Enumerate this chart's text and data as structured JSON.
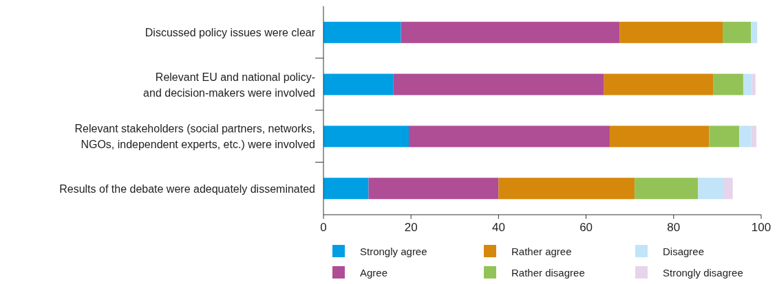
{
  "chart_data": {
    "type": "bar",
    "orientation": "horizontal",
    "stacked": true,
    "categories": [
      "Discussed policy issues were clear",
      "Relevant EU and national policy-\nand decision-makers were involved",
      "Relevant stakeholders (social partners, networks,\nNGOs, independent experts, etc.) were involved",
      "Results of the debate were adequately disseminated"
    ],
    "series": [
      {
        "name": "Strongly agree",
        "color": "#009fe3",
        "values": [
          17.7,
          16.0,
          19.5,
          10.3
        ]
      },
      {
        "name": "Agree",
        "color": "#af4d95",
        "values": [
          50.0,
          48.1,
          45.9,
          29.7
        ]
      },
      {
        "name": "Rather agree",
        "color": "#d5880b",
        "values": [
          23.5,
          25.0,
          22.7,
          31.1
        ]
      },
      {
        "name": "Rather disagree",
        "color": "#93c356",
        "values": [
          6.5,
          6.8,
          6.9,
          14.5
        ]
      },
      {
        "name": "Disagree",
        "color": "#c1e4f9",
        "values": [
          1.4,
          2.0,
          2.7,
          5.9
        ]
      },
      {
        "name": "Strongly disagree",
        "color": "#e6d4eb",
        "values": [
          0,
          0.8,
          1.2,
          2.0
        ]
      }
    ],
    "xlim": [
      0,
      100
    ],
    "xticks": [
      0,
      20,
      40,
      60,
      80,
      100
    ],
    "legend": "bottom",
    "grid": false
  }
}
